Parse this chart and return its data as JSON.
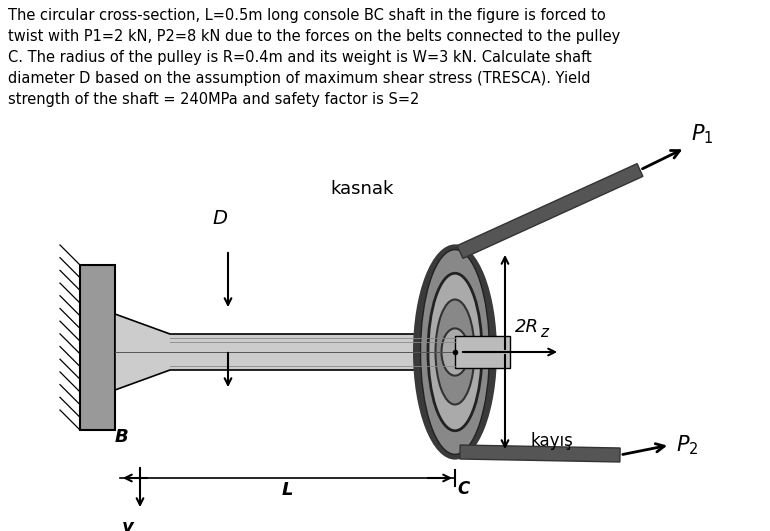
{
  "background_color": "#ffffff",
  "title_text": "The circular cross-section, L=0.5m long console BC shaft in the figure is forced to\ntwist with P1=2 kN, P2=8 kN due to the forces on the belts connected to the pulley\nC. The radius of the pulley is R=0.4m and its weight is W=3 kN. Calculate shaft\ndiameter D based on the assumption of maximum shear stress (TRESCA). Yield\nstrength of the shaft = 240MPa and safety factor is S=2",
  "title_fontsize": 10.5,
  "label_D": "D",
  "label_kasnak": "kasnak",
  "label_2R": "2R",
  "label_P1": "$P_1$",
  "label_P2": "$P_2$",
  "label_B": "B",
  "label_C": "C",
  "label_L": "L",
  "label_y": "y",
  "label_z": "z",
  "label_kayis": "kayış",
  "fig_width": 7.7,
  "fig_height": 5.31,
  "dpi": 100
}
